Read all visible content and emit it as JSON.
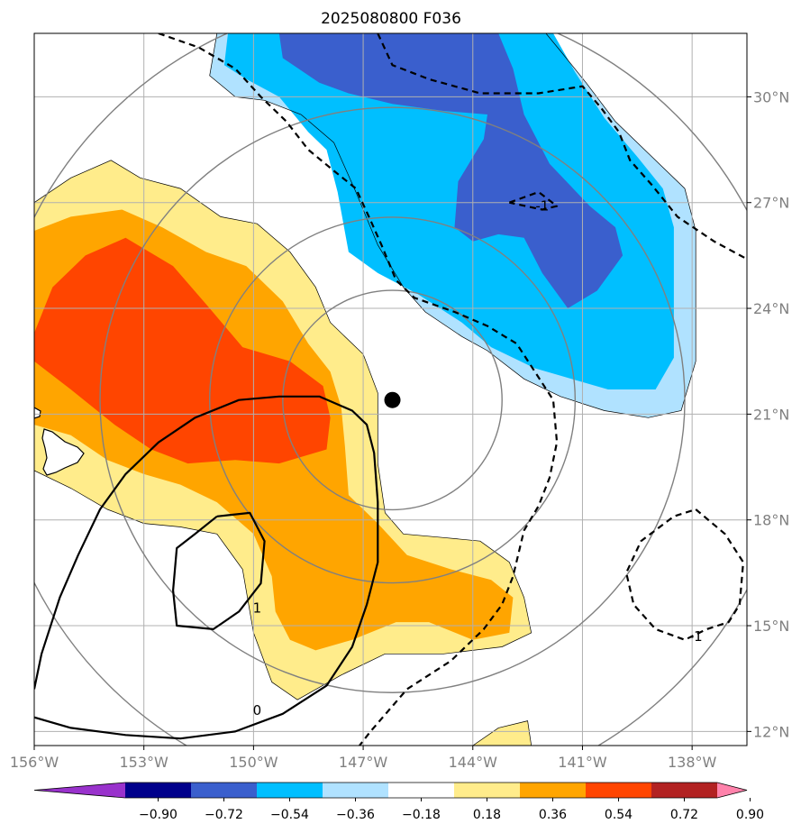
{
  "chart_data": {
    "type": "map",
    "title": "2025080800 F036",
    "projection": "lat-lon",
    "lon_range": [
      -156.0,
      -136.5
    ],
    "lat_range": [
      11.6,
      31.8
    ],
    "lon_ticks": [
      -156,
      -153,
      -150,
      -147,
      -144,
      -141,
      -138
    ],
    "lat_ticks": [
      12,
      15,
      18,
      21,
      24,
      27,
      30
    ],
    "lon_tick_labels": [
      "156°W",
      "153°W",
      "150°W",
      "147°W",
      "144°W",
      "141°W",
      "138°W"
    ],
    "lat_tick_labels": [
      "12°N",
      "15°N",
      "18°N",
      "21°N",
      "24°N",
      "27°N",
      "30°N"
    ],
    "grid": true,
    "storm_center": {
      "lon": -146.2,
      "lat": 21.4
    },
    "range_rings_deg": [
      3,
      5,
      8,
      11
    ],
    "contour_levels": [
      -1,
      0,
      1
    ],
    "contour_labels": [
      {
        "text": "-1",
        "lon": -142.1,
        "lat": 26.9
      },
      {
        "text": "-1",
        "lon": -137.9,
        "lat": 14.7
      },
      {
        "text": "1",
        "lon": -149.9,
        "lat": 15.5
      },
      {
        "text": "0",
        "lon": -149.9,
        "lat": 12.6
      }
    ],
    "colorbar": {
      "boundaries": [
        -0.9,
        -0.72,
        -0.54,
        -0.36,
        -0.18,
        0.18,
        0.36,
        0.54,
        0.72,
        0.9
      ],
      "tick_labels": [
        "−0.90",
        "−0.72",
        "−0.54",
        "−0.36",
        "−0.18",
        "0.18",
        "0.36",
        "0.54",
        "0.72",
        "0.90"
      ],
      "colors": [
        "#9932cc",
        "#00008b",
        "#3a5fcd",
        "#00bfff",
        "#b0e2ff",
        "#ffffff",
        "#ffec8b",
        "#ffa500",
        "#ff4500",
        "#b22222",
        "#ff82ab"
      ],
      "extend": "both"
    },
    "filled_regions": [
      {
        "level": 0.18,
        "color": "#ffec8b",
        "polygon": [
          [
            -156,
            27.0
          ],
          [
            -155,
            27.7
          ],
          [
            -153.9,
            28.2
          ],
          [
            -153.1,
            27.7
          ],
          [
            -152.0,
            27.4
          ],
          [
            -150.9,
            26.6
          ],
          [
            -149.9,
            26.4
          ],
          [
            -149.0,
            25.6
          ],
          [
            -148.3,
            24.6
          ],
          [
            -147.9,
            23.6
          ],
          [
            -147.0,
            22.7
          ],
          [
            -146.6,
            21.6
          ],
          [
            -146.6,
            20.6
          ],
          [
            -146.6,
            19.6
          ],
          [
            -146.4,
            18.2
          ],
          [
            -145.9,
            17.6
          ],
          [
            -144.8,
            17.5
          ],
          [
            -143.8,
            17.4
          ],
          [
            -143.0,
            16.8
          ],
          [
            -142.6,
            15.8
          ],
          [
            -142.4,
            14.8
          ],
          [
            -143.2,
            14.4
          ],
          [
            -144.8,
            14.2
          ],
          [
            -146.4,
            14.2
          ],
          [
            -147.6,
            13.6
          ],
          [
            -148.8,
            12.9
          ],
          [
            -149.5,
            13.4
          ],
          [
            -150.0,
            14.8
          ],
          [
            -150.3,
            16.6
          ],
          [
            -151.0,
            17.6
          ],
          [
            -152.0,
            17.8
          ],
          [
            -153.0,
            17.9
          ],
          [
            -154.0,
            18.3
          ],
          [
            -155.0,
            18.9
          ],
          [
            -156,
            19.4
          ]
        ]
      },
      {
        "level": 0.18,
        "color": "#ffec8b",
        "polygon": [
          [
            -144.0,
            11.6
          ],
          [
            -143.3,
            12.1
          ],
          [
            -142.5,
            12.3
          ],
          [
            -142.4,
            11.6
          ]
        ]
      },
      {
        "level": 0.36,
        "color": "#ffa500",
        "polygon": [
          [
            -156,
            26.2
          ],
          [
            -155,
            26.6
          ],
          [
            -153.6,
            26.8
          ],
          [
            -152.5,
            26.3
          ],
          [
            -151.3,
            25.6
          ],
          [
            -150.2,
            25.2
          ],
          [
            -149.2,
            24.2
          ],
          [
            -148.5,
            23.0
          ],
          [
            -147.9,
            22.2
          ],
          [
            -147.6,
            21.2
          ],
          [
            -147.5,
            20.1
          ],
          [
            -147.4,
            18.7
          ],
          [
            -146.6,
            17.9
          ],
          [
            -145.8,
            17.0
          ],
          [
            -144.6,
            16.6
          ],
          [
            -143.5,
            16.3
          ],
          [
            -142.9,
            15.8
          ],
          [
            -143.0,
            14.8
          ],
          [
            -144.0,
            14.6
          ],
          [
            -145.2,
            15.1
          ],
          [
            -146.1,
            15.1
          ],
          [
            -147.3,
            14.6
          ],
          [
            -148.3,
            14.3
          ],
          [
            -149.0,
            14.6
          ],
          [
            -149.4,
            15.4
          ],
          [
            -149.5,
            16.4
          ],
          [
            -150.0,
            17.6
          ],
          [
            -151.0,
            18.5
          ],
          [
            -152.0,
            19.0
          ],
          [
            -153.0,
            19.3
          ],
          [
            -154.0,
            19.7
          ],
          [
            -155.0,
            20.4
          ],
          [
            -156,
            20.7
          ]
        ]
      },
      {
        "level": 0.54,
        "color": "#ff4500",
        "polygon": [
          [
            -156,
            23.3
          ],
          [
            -155.5,
            24.6
          ],
          [
            -154.6,
            25.5
          ],
          [
            -153.5,
            26.0
          ],
          [
            -152.2,
            25.2
          ],
          [
            -151.2,
            24.0
          ],
          [
            -150.3,
            22.9
          ],
          [
            -149.0,
            22.5
          ],
          [
            -148.1,
            21.8
          ],
          [
            -147.9,
            20.9
          ],
          [
            -148.0,
            20.0
          ],
          [
            -149.3,
            19.6
          ],
          [
            -150.5,
            19.7
          ],
          [
            -151.8,
            19.6
          ],
          [
            -152.8,
            20.0
          ],
          [
            -153.8,
            20.7
          ],
          [
            -155.0,
            21.7
          ],
          [
            -156,
            22.5
          ]
        ]
      },
      {
        "level": -0.18,
        "color": "#b0e2ff",
        "polygon": [
          [
            -151.0,
            31.8
          ],
          [
            -151.2,
            30.6
          ],
          [
            -150.5,
            30.0
          ],
          [
            -149.7,
            29.9
          ],
          [
            -148.7,
            29.5
          ],
          [
            -147.8,
            28.7
          ],
          [
            -147.2,
            27.3
          ],
          [
            -146.6,
            25.8
          ],
          [
            -145.9,
            24.6
          ],
          [
            -145.3,
            23.9
          ],
          [
            -144.3,
            23.2
          ],
          [
            -143.6,
            22.8
          ],
          [
            -142.6,
            22.0
          ],
          [
            -141.6,
            21.5
          ],
          [
            -140.4,
            21.1
          ],
          [
            -139.2,
            20.9
          ],
          [
            -138.3,
            21.1
          ],
          [
            -137.9,
            22.5
          ],
          [
            -137.9,
            24.2
          ],
          [
            -137.9,
            26.2
          ],
          [
            -138.2,
            27.4
          ],
          [
            -139.2,
            28.4
          ],
          [
            -140.1,
            29.3
          ],
          [
            -140.9,
            30.4
          ],
          [
            -141.6,
            31.3
          ],
          [
            -142.0,
            31.8
          ]
        ]
      },
      {
        "level": -0.36,
        "color": "#00bfff",
        "polygon": [
          [
            -150.7,
            31.8
          ],
          [
            -150.8,
            30.9
          ],
          [
            -150.2,
            30.5
          ],
          [
            -149.3,
            30.0
          ],
          [
            -148.5,
            29.0
          ],
          [
            -148.0,
            28.5
          ],
          [
            -147.7,
            27.3
          ],
          [
            -147.4,
            25.6
          ],
          [
            -146.6,
            25.0
          ],
          [
            -145.5,
            24.4
          ],
          [
            -144.3,
            23.6
          ],
          [
            -143.5,
            22.9
          ],
          [
            -142.3,
            22.3
          ],
          [
            -141.3,
            22.0
          ],
          [
            -140.3,
            21.7
          ],
          [
            -139.0,
            21.7
          ],
          [
            -138.5,
            22.6
          ],
          [
            -138.5,
            24.5
          ],
          [
            -138.5,
            26.3
          ],
          [
            -138.8,
            27.4
          ],
          [
            -139.5,
            28.3
          ],
          [
            -140.4,
            29.4
          ],
          [
            -141.2,
            30.7
          ],
          [
            -141.8,
            31.8
          ]
        ]
      },
      {
        "level": -0.54,
        "color": "#3a5fcd",
        "polygon": [
          [
            -149.3,
            31.8
          ],
          [
            -149.2,
            31.1
          ],
          [
            -148.2,
            30.4
          ],
          [
            -147.4,
            30.1
          ],
          [
            -146.2,
            29.8
          ],
          [
            -144.8,
            29.6
          ],
          [
            -143.6,
            29.5
          ],
          [
            -143.7,
            28.8
          ],
          [
            -144.4,
            27.6
          ],
          [
            -144.5,
            26.3
          ],
          [
            -144.0,
            25.9
          ],
          [
            -143.3,
            26.1
          ],
          [
            -142.6,
            26.0
          ],
          [
            -142.1,
            25.0
          ],
          [
            -141.4,
            24.0
          ],
          [
            -140.6,
            24.5
          ],
          [
            -139.9,
            25.5
          ],
          [
            -140.1,
            26.3
          ],
          [
            -140.8,
            26.9
          ],
          [
            -141.9,
            28.1
          ],
          [
            -142.6,
            29.5
          ],
          [
            -142.9,
            30.8
          ],
          [
            -143.3,
            31.8
          ]
        ]
      }
    ],
    "contour_lines": [
      {
        "level": -1,
        "style": "dashed",
        "points": [
          [
            -152.6,
            31.8
          ],
          [
            -151.5,
            31.4
          ],
          [
            -150.5,
            30.8
          ],
          [
            -149.8,
            30.0
          ],
          [
            -149.1,
            29.3
          ],
          [
            -148.5,
            28.5
          ],
          [
            -147.8,
            27.9
          ],
          [
            -147.2,
            27.4
          ],
          [
            -146.8,
            26.5
          ],
          [
            -146.5,
            25.8
          ],
          [
            -146.1,
            24.8
          ],
          [
            -145.6,
            24.3
          ],
          [
            -144.5,
            23.9
          ],
          [
            -143.6,
            23.5
          ],
          [
            -142.8,
            23.0
          ],
          [
            -142.3,
            22.2
          ],
          [
            -141.8,
            21.4
          ],
          [
            -141.7,
            20.2
          ],
          [
            -141.9,
            19.2
          ],
          [
            -142.2,
            18.4
          ],
          [
            -142.6,
            17.7
          ],
          [
            -142.9,
            16.4
          ],
          [
            -143.2,
            15.6
          ],
          [
            -143.7,
            14.9
          ],
          [
            -144.6,
            14.0
          ],
          [
            -145.8,
            13.2
          ],
          [
            -146.8,
            12.0
          ],
          [
            -147.1,
            11.6
          ]
        ]
      },
      {
        "level": -1,
        "style": "dashed",
        "points": [
          [
            -146.6,
            31.8
          ],
          [
            -146.2,
            30.9
          ],
          [
            -145.2,
            30.5
          ],
          [
            -143.8,
            30.1
          ],
          [
            -142.2,
            30.1
          ],
          [
            -141.0,
            30.3
          ],
          [
            -140.5,
            29.7
          ],
          [
            -140.0,
            29.0
          ],
          [
            -139.7,
            28.2
          ],
          [
            -139.1,
            27.5
          ],
          [
            -138.4,
            26.6
          ],
          [
            -137.4,
            25.9
          ],
          [
            -136.5,
            25.4
          ]
        ]
      },
      {
        "level": -1,
        "style": "dashed",
        "points": [
          [
            -143.0,
            27.0
          ],
          [
            -142.2,
            27.3
          ],
          [
            -141.7,
            26.9
          ],
          [
            -142.1,
            26.8
          ],
          [
            -143.0,
            27.0
          ]
        ]
      },
      {
        "level": -1,
        "style": "dashed",
        "points": [
          [
            -137.9,
            18.3
          ],
          [
            -137.1,
            17.6
          ],
          [
            -136.6,
            16.8
          ],
          [
            -136.7,
            15.6
          ],
          [
            -137.0,
            15.1
          ],
          [
            -137.6,
            14.9
          ],
          [
            -138.2,
            14.6
          ],
          [
            -139.0,
            14.9
          ],
          [
            -139.6,
            15.6
          ],
          [
            -139.8,
            16.5
          ],
          [
            -139.4,
            17.4
          ],
          [
            -138.5,
            18.1
          ],
          [
            -137.9,
            18.3
          ]
        ]
      },
      {
        "level": 0,
        "style": "solid",
        "points": [
          [
            -156,
            12.4
          ],
          [
            -155.0,
            12.1
          ],
          [
            -153.5,
            11.9
          ],
          [
            -152.0,
            11.8
          ],
          [
            -150.5,
            12.0
          ],
          [
            -149.2,
            12.5
          ],
          [
            -148.0,
            13.3
          ],
          [
            -147.3,
            14.4
          ],
          [
            -146.9,
            15.6
          ],
          [
            -146.6,
            16.8
          ],
          [
            -146.6,
            18.5
          ],
          [
            -146.7,
            19.9
          ],
          [
            -146.9,
            20.7
          ],
          [
            -147.3,
            21.1
          ],
          [
            -148.2,
            21.5
          ],
          [
            -149.3,
            21.5
          ],
          [
            -150.4,
            21.4
          ],
          [
            -151.6,
            20.9
          ],
          [
            -152.6,
            20.2
          ],
          [
            -153.5,
            19.3
          ],
          [
            -154.2,
            18.3
          ],
          [
            -154.8,
            17.0
          ],
          [
            -155.3,
            15.8
          ],
          [
            -155.8,
            14.2
          ],
          [
            -156,
            13.2
          ]
        ]
      },
      {
        "level": 1,
        "style": "solid",
        "points": [
          [
            -151.0,
            18.1
          ],
          [
            -150.1,
            18.2
          ],
          [
            -149.7,
            17.4
          ],
          [
            -149.8,
            16.2
          ],
          [
            -150.4,
            15.4
          ],
          [
            -151.1,
            14.9
          ],
          [
            -152.1,
            15.0
          ],
          [
            -152.2,
            16.0
          ],
          [
            -152.1,
            17.2
          ],
          [
            -151.6,
            17.6
          ],
          [
            -151.0,
            18.1
          ]
        ]
      }
    ]
  }
}
